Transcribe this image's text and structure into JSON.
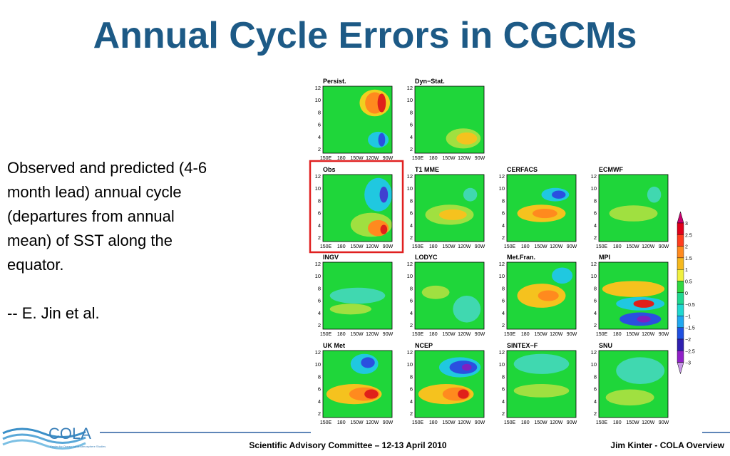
{
  "header": {
    "title": "Annual Cycle Errors in CGCMs"
  },
  "body": {
    "lines": [
      "Observed and predicted (4-6",
      "month lead) annual cycle",
      "(departures from annual",
      "mean) of SST along the",
      "equator."
    ],
    "credit": "-- E. Jin et al."
  },
  "figure": {
    "panels": [
      "Persist.",
      "Dyn−Stat.",
      "Obs",
      "T1  MME",
      "CERFACS",
      "ECMWF",
      "INGV",
      "LODYC",
      "Met.Fran.",
      "MPI",
      "UK Met",
      "NCEP",
      "SINTEX−F",
      "SNU"
    ],
    "yticks": [
      "12",
      "10",
      "8",
      "6",
      "4",
      "2"
    ],
    "xticks": [
      "150E",
      "180",
      "150W",
      "120W",
      "90W"
    ],
    "colorbar": [
      "3",
      "2.5",
      "2",
      "1.5",
      "1",
      "0.5",
      "0",
      "−0.5",
      "−1",
      "−1.5",
      "−2",
      "−2.5",
      "−3"
    ]
  },
  "footer": {
    "logo": "COLA",
    "logo_sub": "Center for Ocean-Land-Atmosphere Studies",
    "center": "Scientific Advisory Committee – 12-13 April 2010",
    "right": "Jim Kinter - COLA Overview"
  }
}
